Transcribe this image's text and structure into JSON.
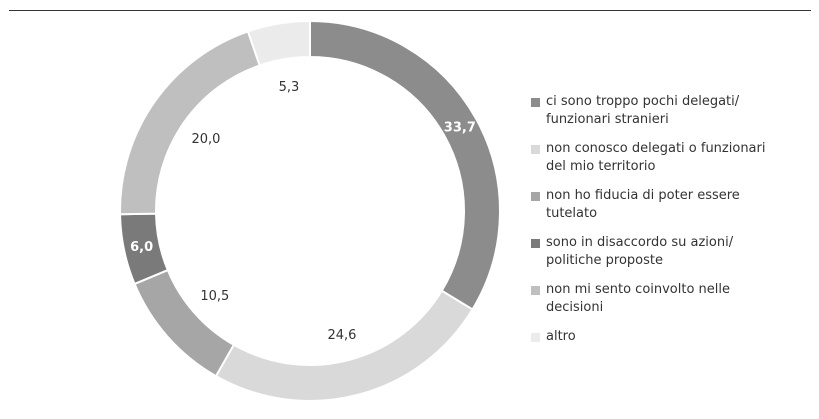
{
  "chart_data": {
    "type": "pie",
    "categories": [
      "ci sono troppo pochi delegati/\nfunzionari stranieri",
      "non conosco delegati o funzionari\ndel mio territorio",
      "non ho fiducia di poter essere\ntutelato",
      "sono in disaccordo su azioni/\npolitiche proposte",
      "non mi sento coinvolto nelle\ndecisioni",
      "altro"
    ],
    "values": [
      33.7,
      24.6,
      10.5,
      6.0,
      20.0,
      5.3
    ],
    "value_labels": [
      "33,7",
      "24,6",
      "10,5",
      "6,0",
      "20,0",
      "5,3"
    ],
    "colors": [
      "#8c8c8c",
      "#d9d9d9",
      "#a6a6a6",
      "#7a7a7a",
      "#bfbfbf",
      "#ebebeb"
    ],
    "legend_position": "right"
  }
}
